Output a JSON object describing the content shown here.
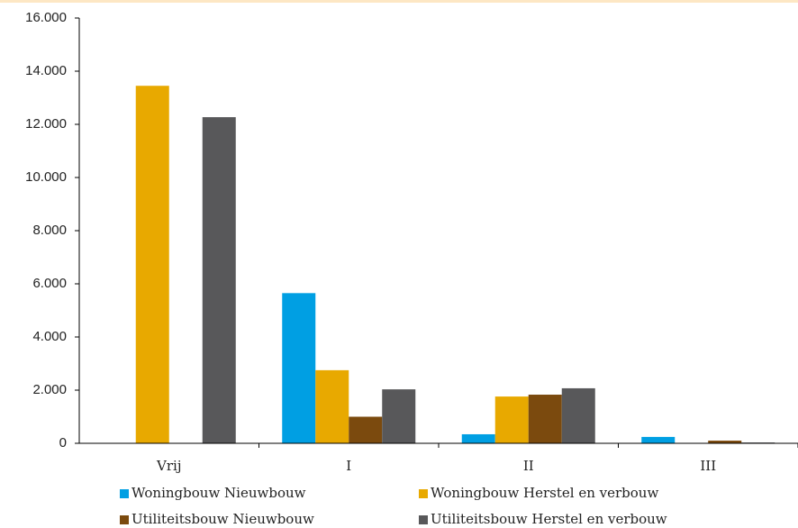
{
  "chart_data": {
    "type": "bar",
    "categories": [
      "Vrij",
      "I",
      "II",
      "III"
    ],
    "series": [
      {
        "name": "Woningbouw Nieuwbouw",
        "color": "#009fe3",
        "values": [
          0,
          5650,
          340,
          240
        ]
      },
      {
        "name": "Woningbouw Herstel en verbouw",
        "color": "#e8a900",
        "values": [
          13450,
          2750,
          1760,
          0
        ]
      },
      {
        "name": "Utiliteitsbouw Nieuwbouw",
        "color": "#7b4a0e",
        "values": [
          0,
          1000,
          1830,
          100
        ]
      },
      {
        "name": "Utiliteitsbouw Herstel en verbouw",
        "color": "#58585a",
        "values": [
          12270,
          2030,
          2070,
          30
        ]
      }
    ],
    "ylim": [
      0,
      16000
    ],
    "yticks": [
      0,
      {
        "value": 2000,
        "label": "2.000"
      },
      {
        "value": 4000,
        "label": "4.000"
      },
      {
        "value": 6000,
        "label": "6.000"
      },
      {
        "value": 8000,
        "label": "8.000"
      },
      {
        "value": 10000,
        "label": "10.000"
      },
      {
        "value": 12000,
        "label": "12.000"
      },
      {
        "value": 14000,
        "label": "14.000"
      },
      {
        "value": 16000,
        "label": "16.000"
      }
    ],
    "grid": false,
    "legend": "bottom"
  }
}
